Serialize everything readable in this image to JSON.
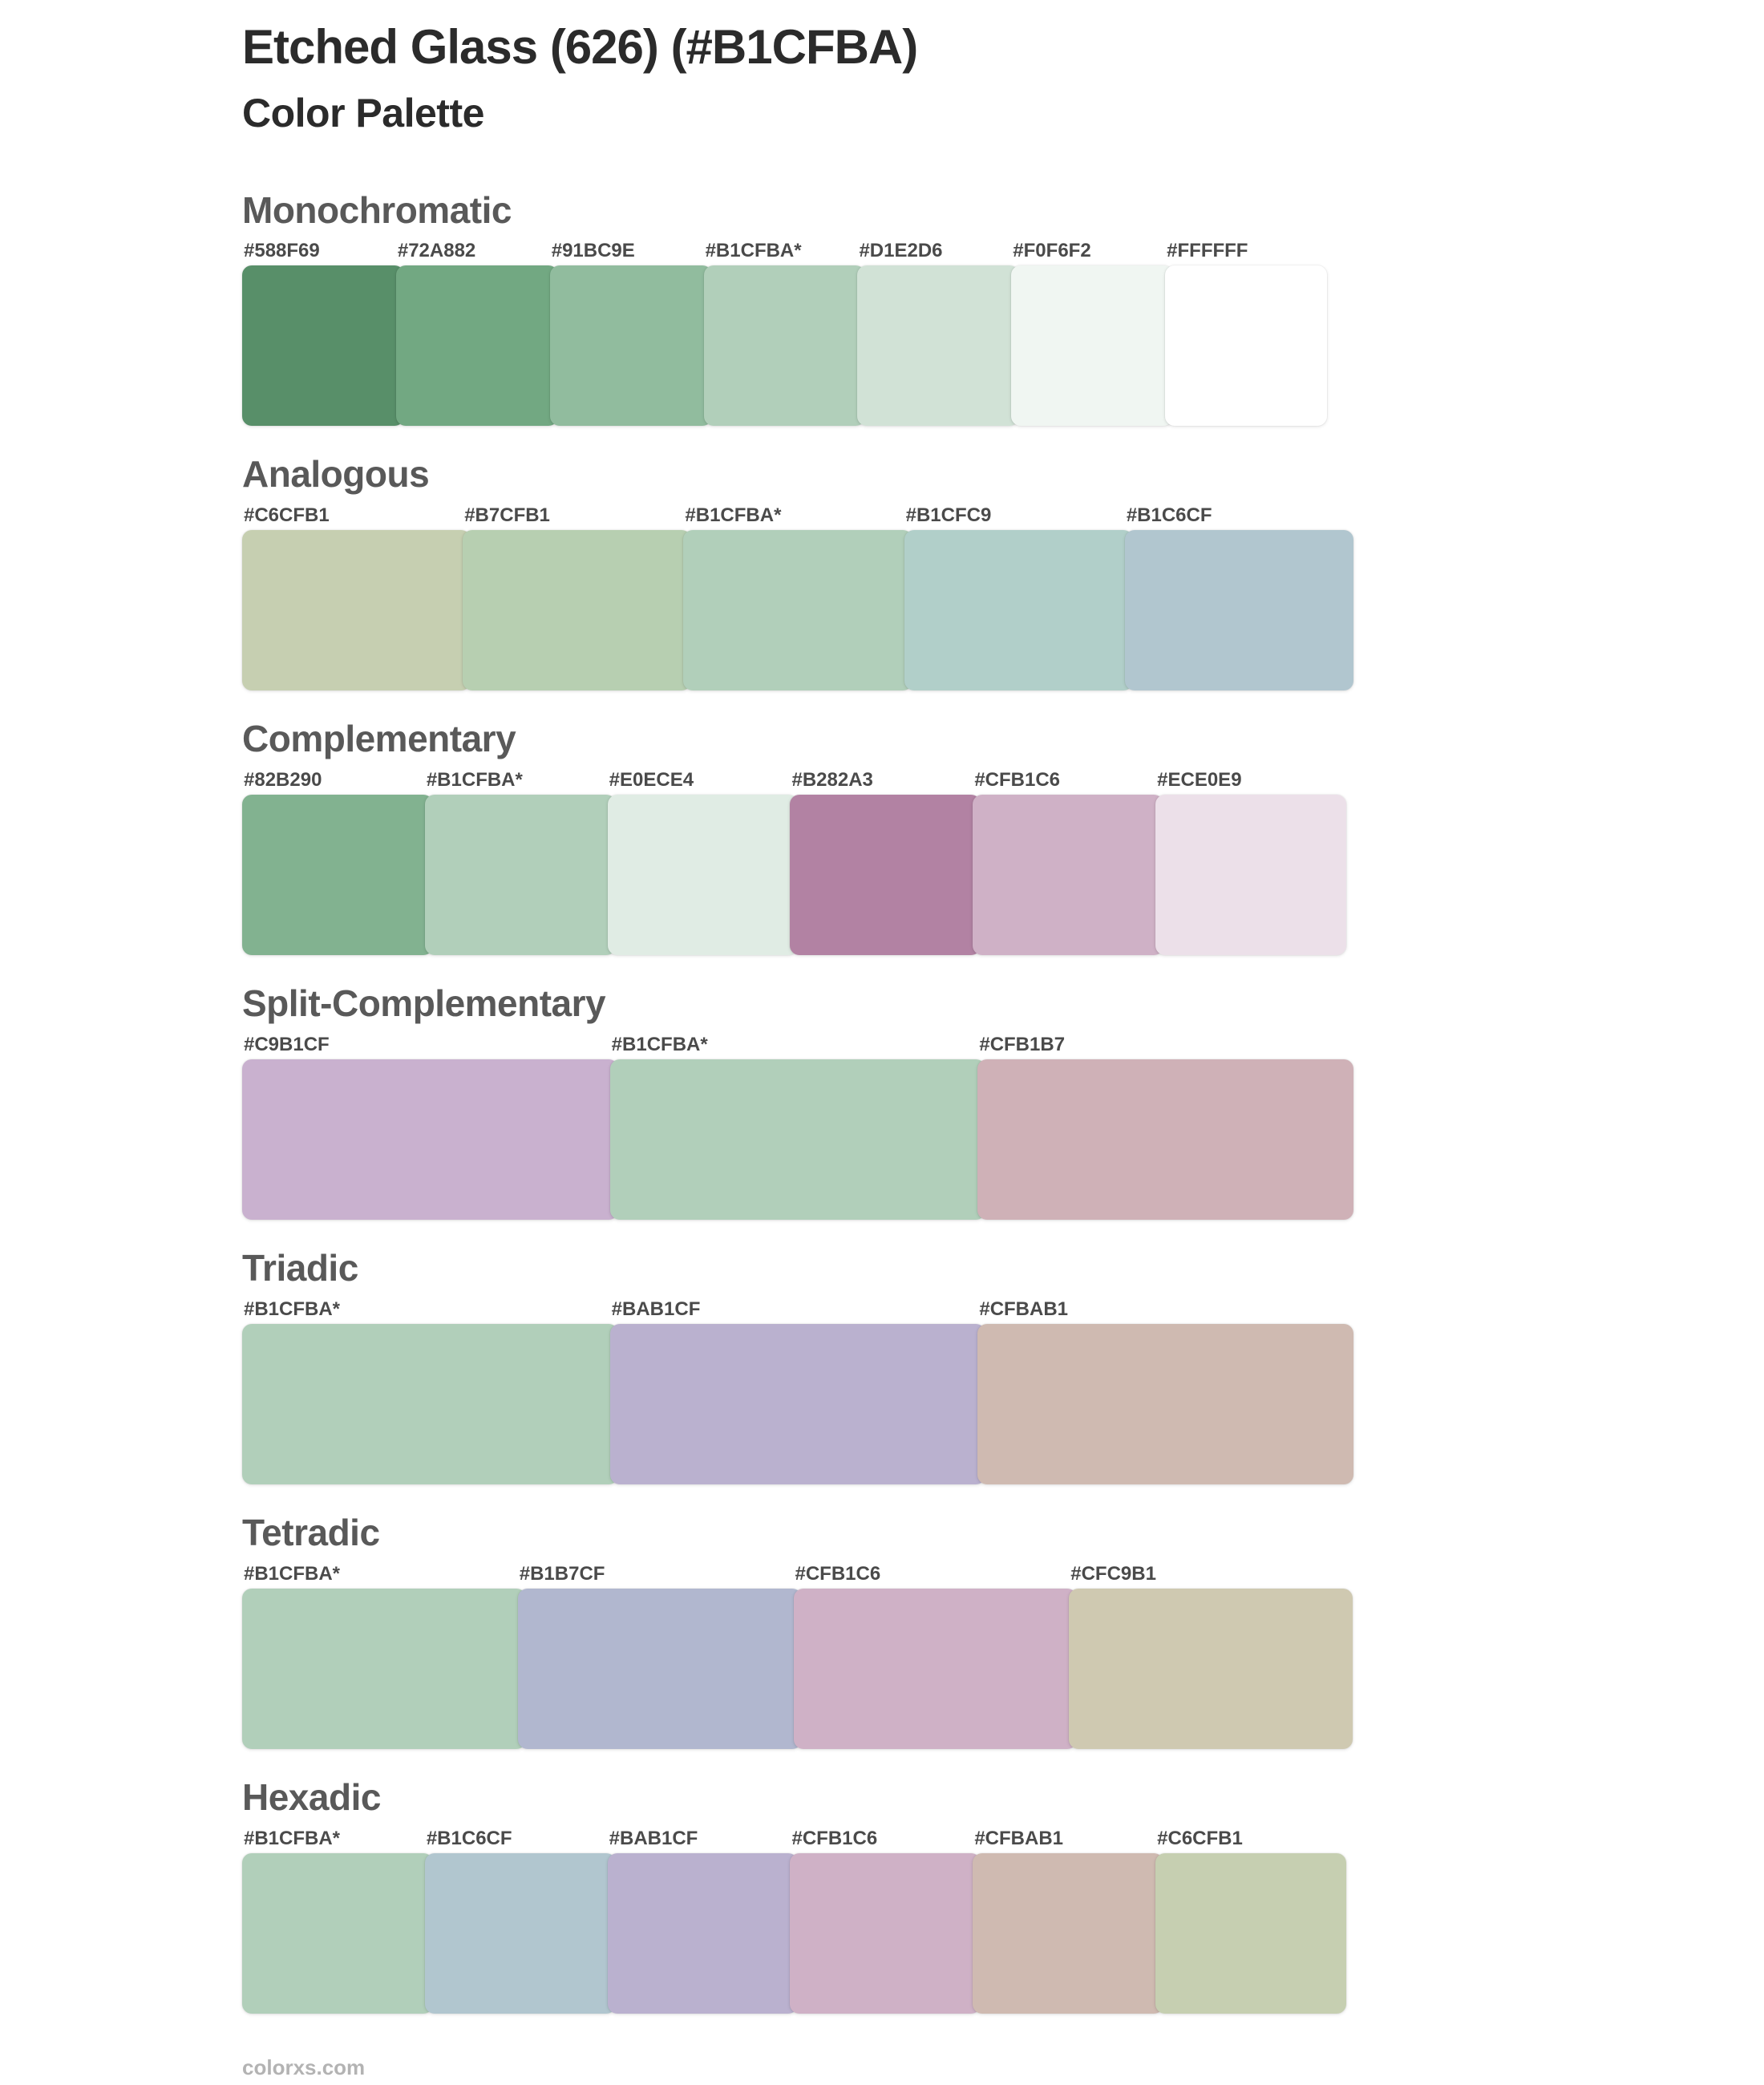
{
  "page": {
    "title": "Etched Glass (626) (#B1CFBA)",
    "subtitle": "Color Palette",
    "base_color": "#B1CFBA",
    "footer": "colorxs.com"
  },
  "sections": [
    {
      "name": "Monochromatic",
      "swatches": [
        {
          "label": "#588F69",
          "color": "#588F69"
        },
        {
          "label": "#72A882",
          "color": "#72A882"
        },
        {
          "label": "#91BC9E",
          "color": "#91BC9E"
        },
        {
          "label": "#B1CFBA*",
          "color": "#B1CFBA"
        },
        {
          "label": "#D1E2D6",
          "color": "#D1E2D6"
        },
        {
          "label": "#F0F6F2",
          "color": "#F0F6F2"
        },
        {
          "label": "#FFFFFF",
          "color": "#FFFFFF"
        }
      ]
    },
    {
      "name": "Analogous",
      "swatches": [
        {
          "label": "#C6CFB1",
          "color": "#C6CFB1"
        },
        {
          "label": "#B7CFB1",
          "color": "#B7CFB1"
        },
        {
          "label": "#B1CFBA*",
          "color": "#B1CFBA"
        },
        {
          "label": "#B1CFC9",
          "color": "#B1CFC9"
        },
        {
          "label": "#B1C6CF",
          "color": "#B1C6CF"
        }
      ]
    },
    {
      "name": "Complementary",
      "swatches": [
        {
          "label": "#82B290",
          "color": "#82B290"
        },
        {
          "label": "#B1CFBA*",
          "color": "#B1CFBA"
        },
        {
          "label": "#E0ECE4",
          "color": "#E0ECE4"
        },
        {
          "label": "#B282A3",
          "color": "#B282A3"
        },
        {
          "label": "#CFB1C6",
          "color": "#CFB1C6"
        },
        {
          "label": "#ECE0E9",
          "color": "#ECE0E9"
        }
      ]
    },
    {
      "name": "Split-Complementary",
      "swatches": [
        {
          "label": "#C9B1CF",
          "color": "#C9B1CF"
        },
        {
          "label": "#B1CFBA*",
          "color": "#B1CFBA"
        },
        {
          "label": "#CFB1B7",
          "color": "#CFB1B7"
        }
      ]
    },
    {
      "name": "Triadic",
      "swatches": [
        {
          "label": "#B1CFBA*",
          "color": "#B1CFBA"
        },
        {
          "label": "#BAB1CF",
          "color": "#BAB1CF"
        },
        {
          "label": "#CFBAB1",
          "color": "#CFBAB1"
        }
      ]
    },
    {
      "name": "Tetradic",
      "swatches": [
        {
          "label": "#B1CFBA*",
          "color": "#B1CFBA"
        },
        {
          "label": "#B1B7CF",
          "color": "#B1B7CF"
        },
        {
          "label": "#CFB1C6",
          "color": "#CFB1C6"
        },
        {
          "label": "#CFC9B1",
          "color": "#CFC9B1"
        }
      ]
    },
    {
      "name": "Hexadic",
      "swatches": [
        {
          "label": "#B1CFBA*",
          "color": "#B1CFBA"
        },
        {
          "label": "#B1C6CF",
          "color": "#B1C6CF"
        },
        {
          "label": "#BAB1CF",
          "color": "#BAB1CF"
        },
        {
          "label": "#CFB1C6",
          "color": "#CFB1C6"
        },
        {
          "label": "#CFBAB1",
          "color": "#CFBAB1"
        },
        {
          "label": "#C6CFB1",
          "color": "#C6CFB1"
        }
      ]
    }
  ]
}
